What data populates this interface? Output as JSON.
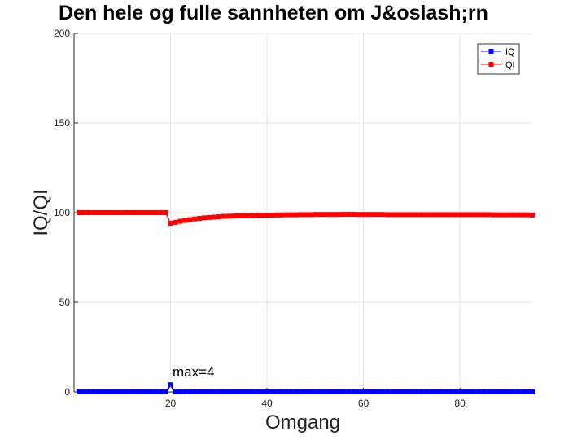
{
  "chart_data": {
    "type": "line",
    "title": "Den hele og fulle sannheten om J&oslash;rn",
    "xlabel": "Omgang",
    "ylabel": "IQ/QI",
    "xlim": [
      0,
      95
    ],
    "ylim": [
      0,
      200
    ],
    "xticks": [
      20,
      40,
      60,
      80
    ],
    "yticks": [
      0,
      50,
      100,
      150,
      200
    ],
    "grid": true,
    "legend_position": "top-right",
    "annotation": {
      "text": "max=4",
      "x": 20,
      "y": 4
    },
    "series": [
      {
        "name": "IQ",
        "color": "#0000ff",
        "marker": "square",
        "x": [
          1,
          2,
          3,
          4,
          5,
          6,
          7,
          8,
          9,
          10,
          11,
          12,
          13,
          14,
          15,
          16,
          17,
          18,
          19,
          20,
          21,
          22,
          23,
          24,
          25,
          26,
          27,
          28,
          29,
          30,
          31,
          32,
          33,
          34,
          35,
          36,
          37,
          38,
          39,
          40,
          41,
          42,
          43,
          44,
          45,
          46,
          47,
          48,
          49,
          50,
          51,
          52,
          53,
          54,
          55,
          56,
          57,
          58,
          59,
          60,
          61,
          62,
          63,
          64,
          65,
          66,
          67,
          68,
          69,
          70,
          71,
          72,
          73,
          74,
          75,
          76,
          77,
          78,
          79,
          80,
          81,
          82,
          83,
          84,
          85,
          86,
          87,
          88,
          89,
          90,
          91,
          92,
          93,
          94,
          95
        ],
        "y": [
          0,
          0,
          0,
          0,
          0,
          0,
          0,
          0,
          0,
          0,
          0,
          0,
          0,
          0,
          0,
          0,
          0,
          0,
          0,
          4,
          0,
          0,
          0,
          0,
          0,
          0,
          0,
          0,
          0,
          0,
          0,
          0,
          0,
          0,
          0,
          0,
          0,
          0,
          0,
          0,
          0,
          0,
          0,
          0,
          0,
          0,
          0,
          0,
          0,
          0,
          0,
          0,
          0,
          0,
          0,
          0,
          0,
          0,
          0,
          0,
          0,
          0,
          0,
          0,
          0,
          0,
          0,
          0,
          0,
          0,
          0,
          0,
          0,
          0,
          0,
          0,
          0,
          0,
          0,
          0,
          0,
          0,
          0,
          0,
          0,
          0,
          0,
          0,
          0,
          0,
          0,
          0,
          0,
          0,
          0
        ]
      },
      {
        "name": "QI",
        "color": "#ff0000",
        "marker": "square",
        "x": [
          1,
          2,
          3,
          4,
          5,
          6,
          7,
          8,
          9,
          10,
          11,
          12,
          13,
          14,
          15,
          16,
          17,
          18,
          19,
          20,
          21,
          22,
          23,
          24,
          25,
          26,
          27,
          28,
          29,
          30,
          31,
          32,
          33,
          34,
          35,
          36,
          37,
          38,
          39,
          40,
          41,
          42,
          43,
          44,
          45,
          46,
          47,
          48,
          49,
          50,
          51,
          52,
          53,
          54,
          55,
          56,
          57,
          58,
          59,
          60,
          61,
          62,
          63,
          64,
          65,
          66,
          67,
          68,
          69,
          70,
          71,
          72,
          73,
          74,
          75,
          76,
          77,
          78,
          79,
          80,
          81,
          82,
          83,
          84,
          85,
          86,
          87,
          88,
          89,
          90,
          91,
          92,
          93,
          94,
          95
        ],
        "y": [
          100,
          100,
          100,
          100,
          100,
          100,
          100,
          100,
          100,
          100,
          100,
          100,
          100,
          100,
          100,
          100,
          100,
          100,
          100,
          94.1,
          94.6,
          95.2,
          95.7,
          96.1,
          96.5,
          96.8,
          97.1,
          97.3,
          97.5,
          97.7,
          97.9,
          98,
          98.1,
          98.2,
          98.3,
          98.3,
          98.4,
          98.5,
          98.5,
          98.6,
          98.6,
          98.7,
          98.7,
          98.8,
          98.8,
          98.8,
          98.9,
          98.9,
          98.9,
          99,
          99,
          99,
          99,
          99,
          99,
          99.1,
          99.1,
          99.1,
          99,
          99,
          99,
          99,
          99,
          99,
          98.9,
          98.9,
          98.9,
          98.9,
          98.9,
          98.9,
          98.9,
          98.9,
          98.9,
          98.9,
          98.9,
          98.9,
          98.9,
          98.9,
          98.9,
          98.9,
          98.9,
          98.9,
          98.9,
          98.9,
          98.9,
          98.9,
          98.8,
          98.8,
          98.8,
          98.8,
          98.8,
          98.8,
          98.8,
          98.8,
          98.7
        ]
      }
    ]
  }
}
